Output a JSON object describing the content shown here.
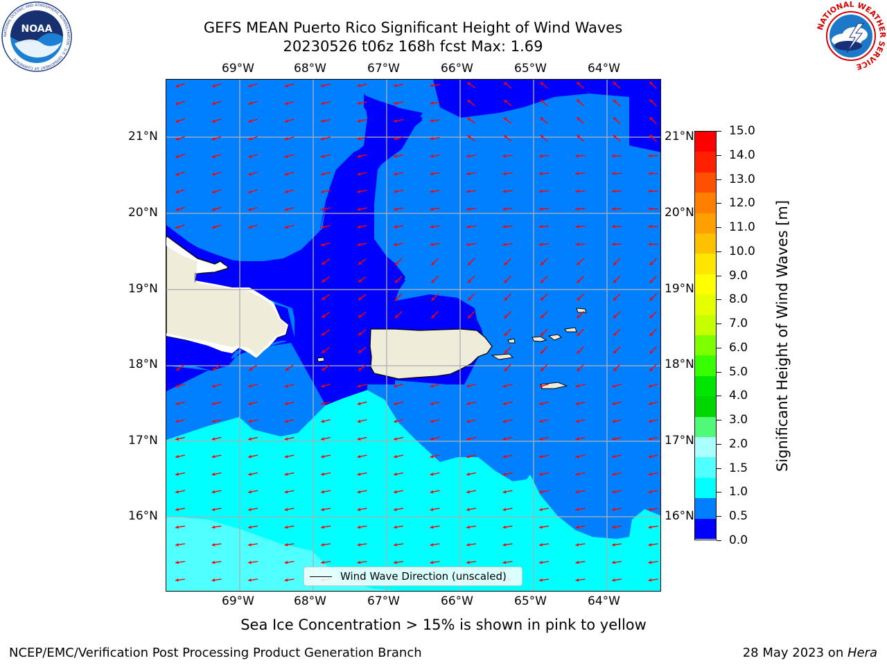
{
  "header": {
    "title_line1": "GEFS MEAN Puerto Rico Significant Height of Wind Waves",
    "title_line2": "20230526 t06z 168h fcst   Max: 1.69"
  },
  "logos": {
    "left": "NOAA",
    "left_ring_text": "NATIONAL OCEANIC AND ATMOSPHERIC ADMINISTRATION · U.S. DEPARTMENT OF COMMERCE",
    "right_ring_text": "NATIONAL WEATHER SERVICE"
  },
  "map": {
    "lon_labels": [
      "69°W",
      "68°W",
      "67°W",
      "66°W",
      "65°W",
      "64°W"
    ],
    "lat_labels": [
      "21°N",
      "20°N",
      "19°N",
      "18°N",
      "17°N",
      "16°N"
    ],
    "extent": {
      "lon": [
        -69.98,
        -63.22
      ],
      "lat": [
        15.0,
        21.75
      ]
    },
    "grid": true,
    "vector_color": "#ff0000",
    "legend_label": "Wind Wave Direction (unscaled)"
  },
  "colorbar": {
    "label": "Significant Height of Wind Waves [m]",
    "ticks": [
      "15.0",
      "14.0",
      "13.0",
      "12.0",
      "11.0",
      "10.0",
      "9.0",
      "8.0",
      "7.0",
      "6.0",
      "5.0",
      "4.0",
      "3.0",
      "2.0",
      "1.5",
      "1.0",
      "0.5",
      "0.0"
    ],
    "colors_top_to_bottom": [
      "#ff0000",
      "#ff2000",
      "#ff5000",
      "#ff8000",
      "#ffa000",
      "#ffc000",
      "#ffe600",
      "#ffff00",
      "#e6ff00",
      "#c8ff00",
      "#7dff00",
      "#37ff00",
      "#00e600",
      "#00d700",
      "#50fa78",
      "#aaffff",
      "#50ffff",
      "#00ffff",
      "#0080ff",
      "#0000ff"
    ]
  },
  "footer": {
    "ice_note": "Sea Ice Concentration > 15% is shown in pink to yellow",
    "left": "NCEP/EMC/Verification Post Processing Product Generation Branch",
    "right_date": "28 May 2023 on ",
    "right_host": "Hera"
  }
}
